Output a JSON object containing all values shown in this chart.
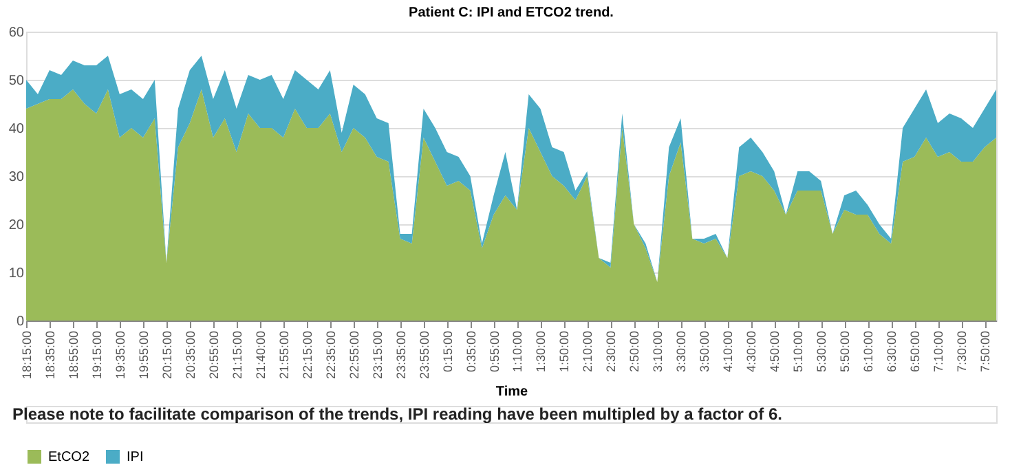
{
  "chart_data": {
    "type": "area",
    "title": "Patient C: IPI and ETCO2 trend.",
    "xlabel": "Time",
    "stacked": true,
    "categories": [
      "18:15:00",
      null,
      "18:35:00",
      null,
      "18:55:00",
      null,
      "19:15:00",
      null,
      "19:35:00",
      null,
      "19:55:00",
      null,
      "20:15:00",
      null,
      "20:35:00",
      null,
      "20:55:00",
      null,
      "21:15:00",
      null,
      "21:40:00",
      null,
      "21:55:00",
      null,
      "22:15:00",
      null,
      "22:35:00",
      null,
      "22:55:00",
      null,
      "23:15:00",
      null,
      "23:35:00",
      null,
      "23:55:00",
      null,
      "0:15:00",
      null,
      "0:35:00",
      null,
      "0:55:00",
      null,
      "1:10:00",
      null,
      "1:30:00",
      null,
      "1:50:00",
      null,
      "2:10:00",
      null,
      "2:30:00",
      null,
      "2:50:00",
      null,
      "3:10:00",
      null,
      "3:30:00",
      null,
      "3:50:00",
      null,
      "4:10:00",
      null,
      "4:30:00",
      null,
      "4:50:00",
      null,
      "5:10:00",
      null,
      "5:30:00",
      null,
      "5:50:00",
      null,
      "6:10:00",
      null,
      "6:30:00",
      null,
      "6:50:00",
      null,
      "7:10:00",
      null,
      "7:30:00",
      null,
      "7:50:00",
      null
    ],
    "series": [
      {
        "name": "EtCO2",
        "color": "#9bbb59",
        "values": [
          44,
          45,
          46,
          46,
          48,
          45,
          43,
          48,
          38,
          40,
          38,
          42,
          12,
          36,
          41,
          48,
          38,
          42,
          35,
          43,
          40,
          40,
          38,
          44,
          40,
          40,
          43,
          35,
          40,
          38,
          34,
          33,
          17,
          16,
          38,
          33,
          28,
          29,
          27,
          15,
          22,
          26,
          23,
          40,
          35,
          30,
          28,
          25,
          30,
          13,
          11,
          40,
          20,
          15,
          8,
          30,
          37,
          17,
          16,
          17,
          13,
          30,
          31,
          30,
          27,
          22,
          27,
          27,
          27,
          18,
          23,
          22,
          22,
          18,
          16,
          33,
          34,
          38,
          34,
          35,
          33,
          33,
          36,
          38
        ]
      },
      {
        "name": "IPI",
        "color": "#4bacc6",
        "values": [
          6,
          2,
          6,
          5,
          6,
          8,
          10,
          7,
          9,
          8,
          8,
          8,
          0,
          8,
          11,
          7,
          8,
          10,
          9,
          8,
          10,
          11,
          8,
          8,
          10,
          8,
          9,
          4,
          9,
          9,
          8,
          8,
          1,
          2,
          6,
          7,
          7,
          5,
          3,
          1,
          4,
          9,
          0,
          7,
          9,
          6,
          7,
          2,
          1,
          0,
          1,
          3,
          0,
          1,
          0,
          6,
          5,
          0,
          1,
          1,
          0,
          6,
          7,
          5,
          4,
          0,
          4,
          4,
          2,
          0,
          3,
          5,
          2,
          2,
          1,
          7,
          10,
          10,
          7,
          8,
          9,
          7,
          8,
          10
        ]
      }
    ],
    "ylim": [
      0,
      60
    ],
    "yticks": [
      0,
      10,
      20,
      30,
      40,
      50,
      60
    ],
    "grid": "y",
    "legend": "bottom",
    "annotations": [
      "Please note to facilitate comparison of the trends, IPI reading have been multipled by a factor of 6."
    ]
  }
}
